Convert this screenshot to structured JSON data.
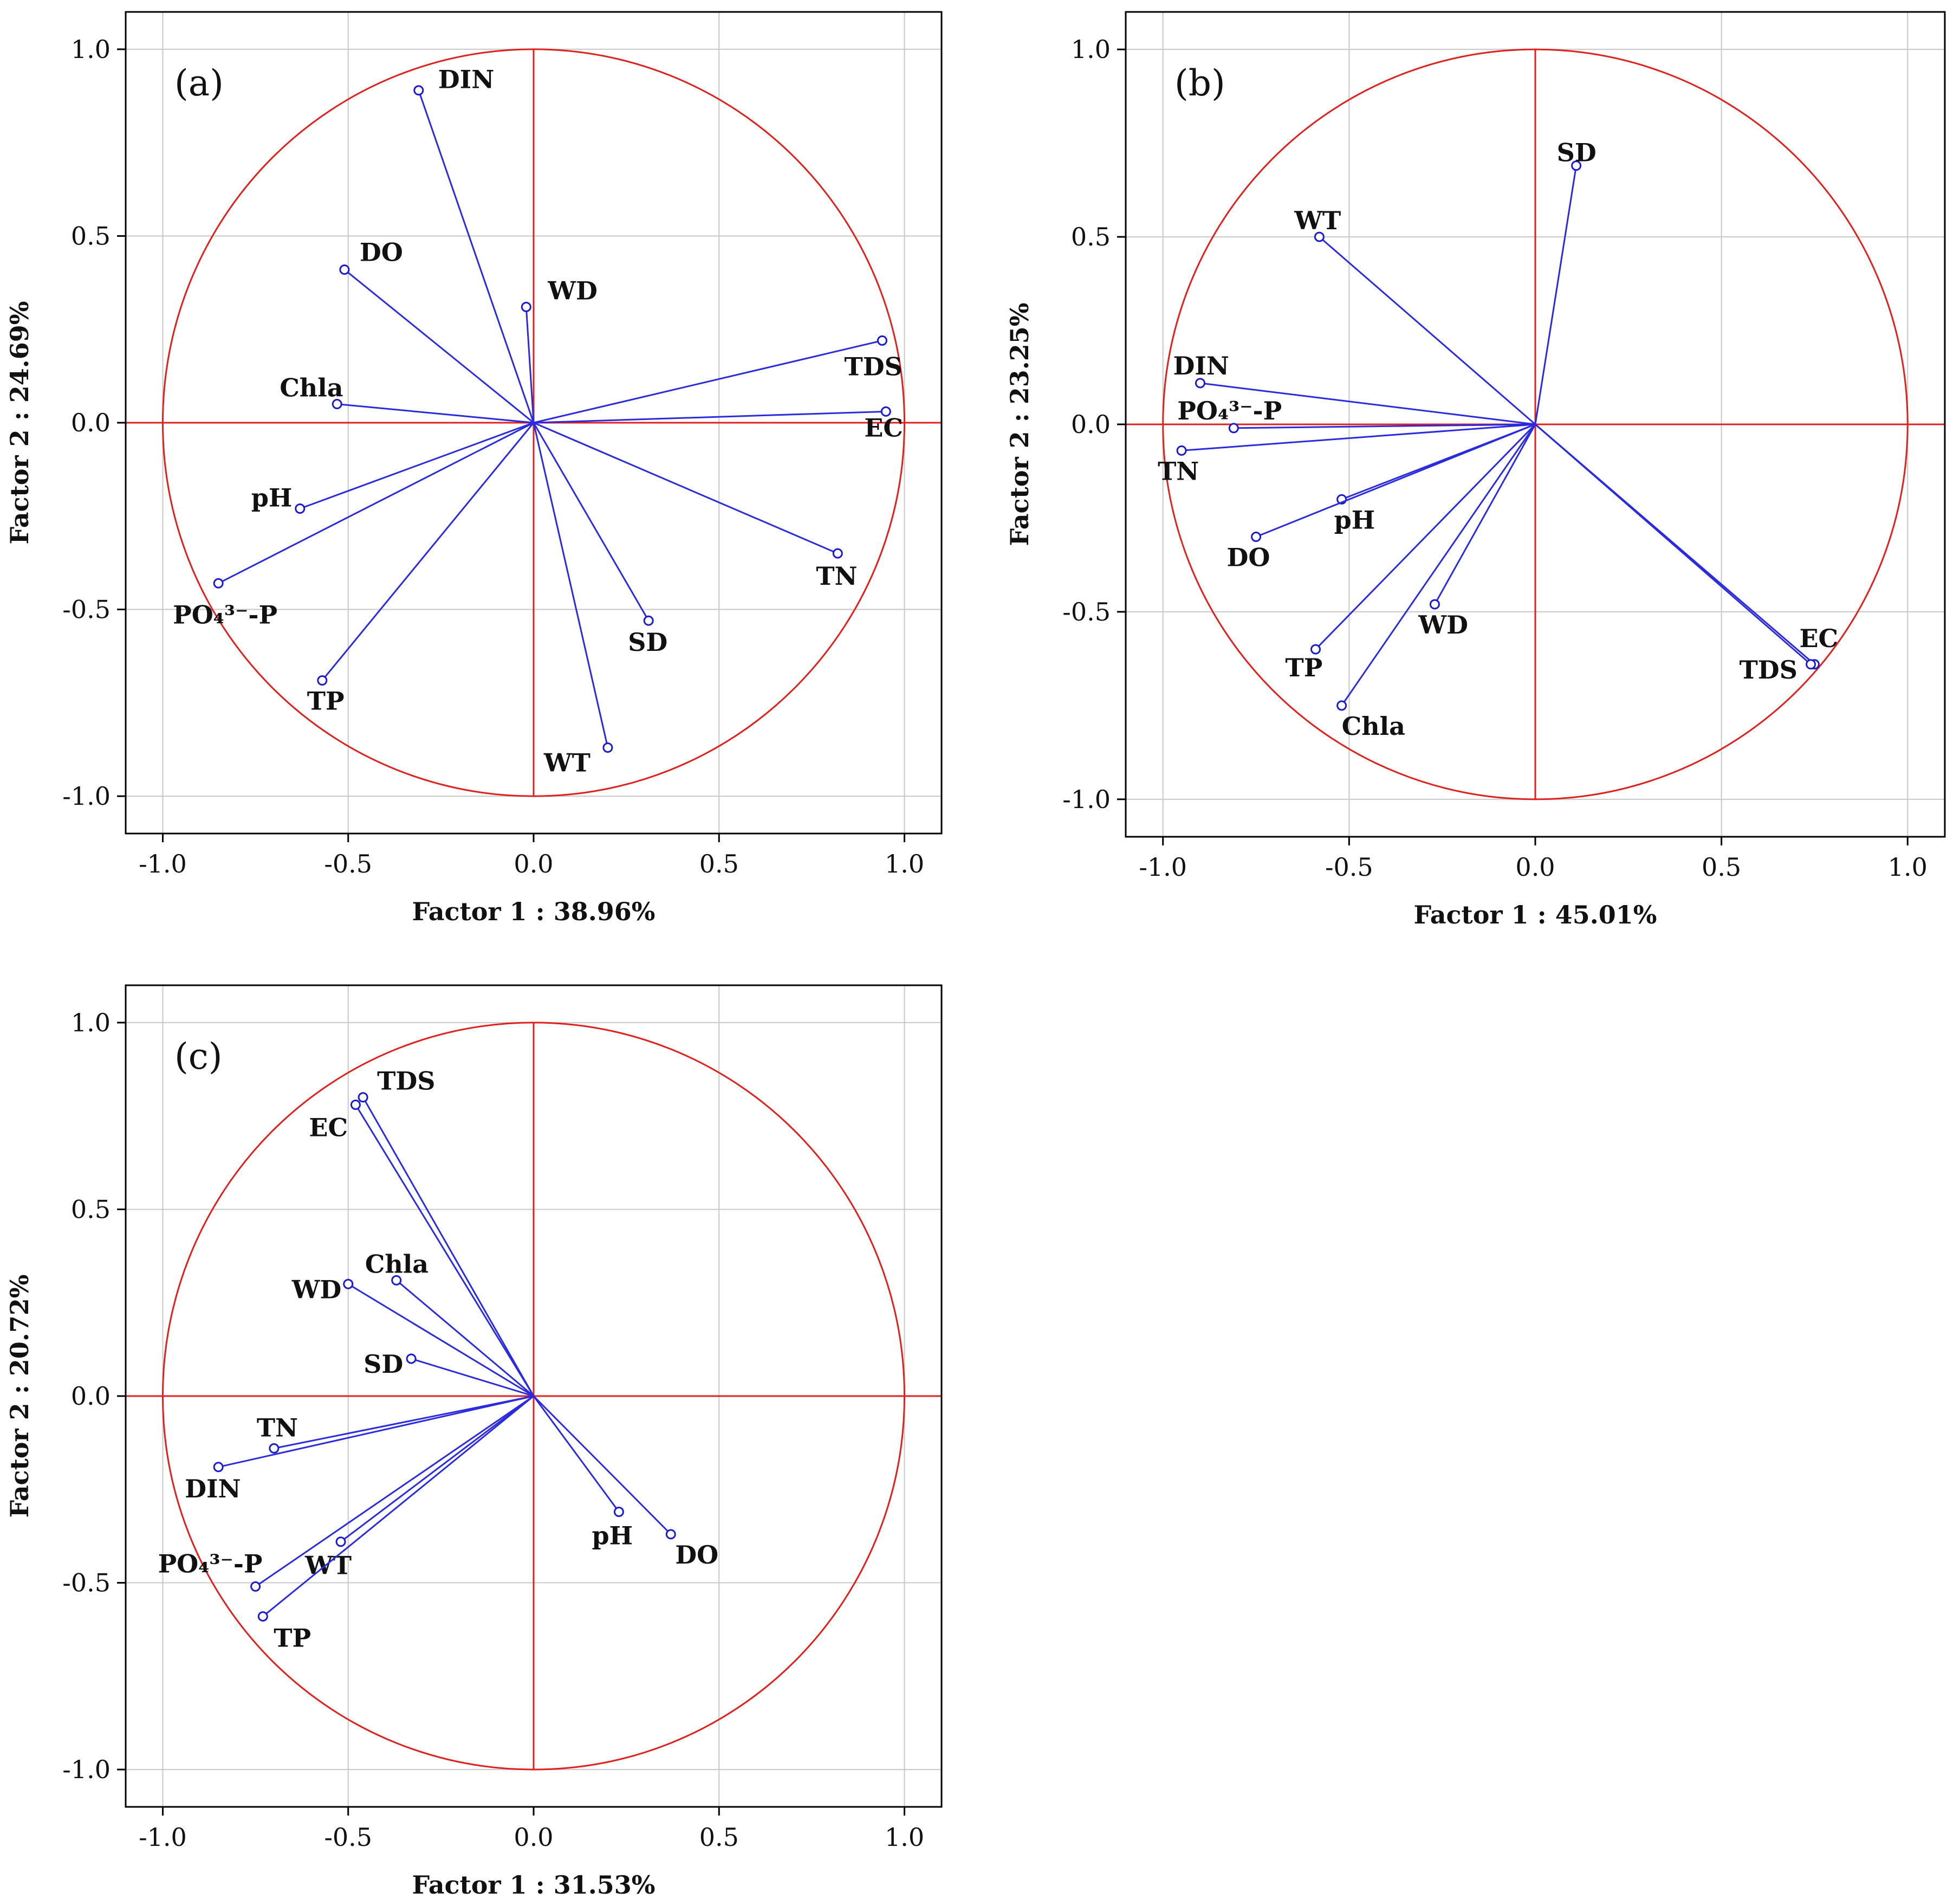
{
  "colors": {
    "circle": "#e0201c",
    "vector": "#2a2ae0",
    "point": "#1a1ad0",
    "grid": "#c8c8c8"
  },
  "chart_data": [
    {
      "type": "scatter",
      "panel": "(a)",
      "xlabel": "Factor 1 : 38.96%",
      "ylabel": "Factor 2 : 24.69%",
      "xlim": [
        -1.1,
        1.1
      ],
      "ylim": [
        -1.1,
        1.1
      ],
      "xticks": [
        "-1.0",
        "-0.5",
        "0.0",
        "0.5",
        "1.0"
      ],
      "yticks": [
        "-1.0",
        "-0.5",
        "0.0",
        "0.5",
        "1.0"
      ],
      "points": [
        {
          "label": "DIN",
          "x": -0.31,
          "y": 0.89
        },
        {
          "label": "DO",
          "x": -0.51,
          "y": 0.41
        },
        {
          "label": "WD",
          "x": -0.02,
          "y": 0.31
        },
        {
          "label": "TDS",
          "x": 0.94,
          "y": 0.22
        },
        {
          "label": "Chla",
          "x": -0.53,
          "y": 0.05
        },
        {
          "label": "EC",
          "x": 0.95,
          "y": 0.03
        },
        {
          "label": "pH",
          "x": -0.63,
          "y": -0.23
        },
        {
          "label": "PO₄³⁻-P",
          "x": -0.85,
          "y": -0.43
        },
        {
          "label": "TN",
          "x": 0.82,
          "y": -0.35
        },
        {
          "label": "SD",
          "x": 0.31,
          "y": -0.53
        },
        {
          "label": "TP",
          "x": -0.57,
          "y": -0.69
        },
        {
          "label": "WT",
          "x": 0.2,
          "y": -0.87
        }
      ]
    },
    {
      "type": "scatter",
      "panel": "(b)",
      "xlabel": "Factor 1 : 45.01%",
      "ylabel": "Factor 2 : 23.25%",
      "xlim": [
        -1.1,
        1.1
      ],
      "ylim": [
        -1.1,
        1.1
      ],
      "xticks": [
        "-1.0",
        "-0.5",
        "0.0",
        "0.5",
        "1.0"
      ],
      "yticks": [
        "-1.0",
        "-0.5",
        "0.0",
        "0.5",
        "1.0"
      ],
      "points": [
        {
          "label": "SD",
          "x": 0.11,
          "y": 0.69
        },
        {
          "label": "WT",
          "x": -0.58,
          "y": 0.5
        },
        {
          "label": "DIN",
          "x": -0.9,
          "y": 0.11
        },
        {
          "label": "PO₄³⁻-P",
          "x": -0.81,
          "y": -0.01
        },
        {
          "label": "TN",
          "x": -0.95,
          "y": -0.07
        },
        {
          "label": "pH",
          "x": -0.52,
          "y": -0.2
        },
        {
          "label": "DO",
          "x": -0.75,
          "y": -0.3
        },
        {
          "label": "WD",
          "x": -0.27,
          "y": -0.48
        },
        {
          "label": "TP",
          "x": -0.59,
          "y": -0.6
        },
        {
          "label": "Chla",
          "x": -0.52,
          "y": -0.75
        },
        {
          "label": "EC",
          "x": 0.75,
          "y": -0.64
        },
        {
          "label": "TDS",
          "x": 0.74,
          "y": -0.64
        }
      ]
    },
    {
      "type": "scatter",
      "panel": "(c)",
      "xlabel": "Factor 1 : 31.53%",
      "ylabel": "Factor 2 : 20.72%",
      "xlim": [
        -1.1,
        1.1
      ],
      "ylim": [
        -1.1,
        1.1
      ],
      "xticks": [
        "-1.0",
        "-0.5",
        "0.0",
        "0.5",
        "1.0"
      ],
      "yticks": [
        "-1.0",
        "-0.5",
        "0.0",
        "0.5",
        "1.0"
      ],
      "points": [
        {
          "label": "TDS",
          "x": -0.46,
          "y": 0.8
        },
        {
          "label": "EC",
          "x": -0.48,
          "y": 0.78
        },
        {
          "label": "Chla",
          "x": -0.37,
          "y": 0.31
        },
        {
          "label": "WD",
          "x": -0.5,
          "y": 0.3
        },
        {
          "label": "SD",
          "x": -0.33,
          "y": 0.1
        },
        {
          "label": "TN",
          "x": -0.7,
          "y": -0.14
        },
        {
          "label": "DIN",
          "x": -0.85,
          "y": -0.19
        },
        {
          "label": "WT",
          "x": -0.52,
          "y": -0.39
        },
        {
          "label": "PO₄³⁻-P",
          "x": -0.75,
          "y": -0.51
        },
        {
          "label": "TP",
          "x": -0.73,
          "y": -0.59
        },
        {
          "label": "pH",
          "x": 0.23,
          "y": -0.31
        },
        {
          "label": "DO",
          "x": 0.37,
          "y": -0.37
        }
      ]
    }
  ]
}
